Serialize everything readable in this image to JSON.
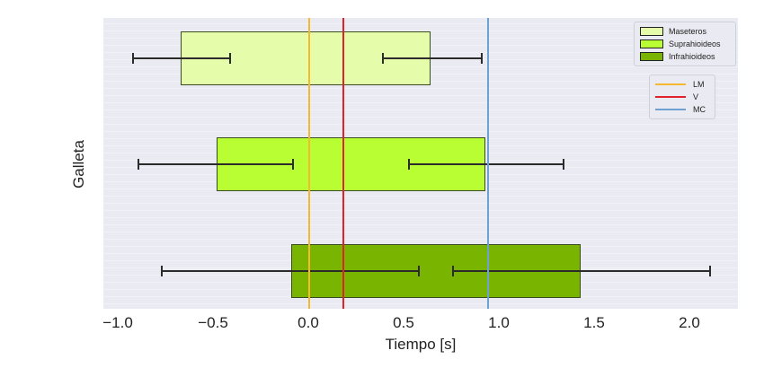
{
  "chart_data": {
    "type": "bar",
    "orientation": "horizontal",
    "title": "",
    "xlabel": "Tiempo [s]",
    "ylabel": "Galleta",
    "xlim": [
      -1.05,
      2.28
    ],
    "xticks": [
      -1.0,
      -0.5,
      0.0,
      0.5,
      1.0,
      1.5,
      2.0
    ],
    "xtick_labels": [
      "−1.0",
      "−0.5",
      "0.0",
      "0.5",
      "1.0",
      "1.5",
      "2.0"
    ],
    "grid": true,
    "series": [
      {
        "name": "Maseteros",
        "color": "#e5fdaa",
        "start": -0.67,
        "end": 0.64,
        "err_start": {
          "center": -0.67,
          "min": -0.92,
          "max": -0.41
        },
        "err_end": {
          "center": 0.64,
          "min": 0.39,
          "max": 0.91
        }
      },
      {
        "name": "Suprahioideos",
        "color": "#b9fd33",
        "start": -0.48,
        "end": 0.93,
        "err_start": {
          "center": -0.48,
          "min": -0.89,
          "max": -0.08
        },
        "err_end": {
          "center": 0.93,
          "min": 0.53,
          "max": 1.34
        }
      },
      {
        "name": "Infrahioideos",
        "color": "#78b400",
        "start": -0.09,
        "end": 1.43,
        "err_start": {
          "center": -0.09,
          "min": -0.77,
          "max": 0.58
        },
        "err_end": {
          "center": 1.43,
          "min": 0.76,
          "max": 2.11
        }
      }
    ],
    "reference_lines": [
      {
        "name": "LM",
        "x": 0.0,
        "color": "#f5b82e"
      },
      {
        "name": "V",
        "x": 0.18,
        "color": "#e3212b"
      },
      {
        "name": "MC",
        "x": 0.94,
        "color": "#6fa0d2"
      }
    ],
    "legend_position": "upper right"
  },
  "legend_bars": [
    "Maseteros",
    "Suprahioideos",
    "Infrahioideos"
  ],
  "legend_lines": [
    "LM",
    "V",
    "MC"
  ]
}
